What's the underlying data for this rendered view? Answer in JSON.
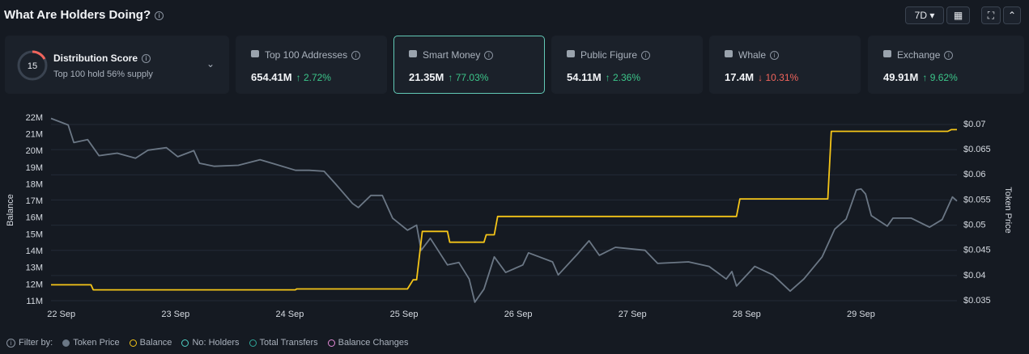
{
  "header": {
    "title": "What Are Holders Doing?",
    "range_button": "7D"
  },
  "score_card": {
    "score": "15",
    "title": "Distribution Score",
    "subtitle": "Top 100 hold 56% supply"
  },
  "cards": [
    {
      "label": "Top 100 Addresses",
      "value": "654.41M",
      "change": "2.72%",
      "direction": "up"
    },
    {
      "label": "Smart Money",
      "value": "21.35M",
      "change": "77.03%",
      "direction": "up",
      "selected": true
    },
    {
      "label": "Public Figure",
      "value": "54.11M",
      "change": "2.36%",
      "direction": "up"
    },
    {
      "label": "Whale",
      "value": "17.4M",
      "change": "10.31%",
      "direction": "down"
    },
    {
      "label": "Exchange",
      "value": "49.91M",
      "change": "9.62%",
      "direction": "up"
    }
  ],
  "chart_data": {
    "type": "line",
    "y_label": "Balance",
    "y2_label": "Token Price",
    "xlim": [
      -0.09,
      7.84
    ],
    "xticks": [
      {
        "value": 0,
        "label": "22 Sep"
      },
      {
        "value": 1,
        "label": "23 Sep"
      },
      {
        "value": 2,
        "label": "24 Sep"
      },
      {
        "value": 3,
        "label": "25 Sep"
      },
      {
        "value": 4,
        "label": "26 Sep"
      },
      {
        "value": 5,
        "label": "27 Sep"
      },
      {
        "value": 6,
        "label": "28 Sep"
      },
      {
        "value": 7,
        "label": "29 Sep"
      }
    ],
    "ylim": [
      11000000,
      22000000
    ],
    "yticks": [
      {
        "value": 11000000,
        "label": "11M"
      },
      {
        "value": 12000000,
        "label": "12M"
      },
      {
        "value": 13000000,
        "label": "13M"
      },
      {
        "value": 14000000,
        "label": "14M"
      },
      {
        "value": 15000000,
        "label": "15M"
      },
      {
        "value": 16000000,
        "label": "16M"
      },
      {
        "value": 17000000,
        "label": "17M"
      },
      {
        "value": 18000000,
        "label": "18M"
      },
      {
        "value": 19000000,
        "label": "19M"
      },
      {
        "value": 20000000,
        "label": "20M"
      },
      {
        "value": 21000000,
        "label": "21M"
      },
      {
        "value": 22000000,
        "label": "22M"
      }
    ],
    "y2lim": [
      0.035,
      0.07
    ],
    "y2ticks": [
      {
        "value": 0.035,
        "label": "$0.035"
      },
      {
        "value": 0.04,
        "label": "$0.04"
      },
      {
        "value": 0.045,
        "label": "$0.045"
      },
      {
        "value": 0.05,
        "label": "$0.05"
      },
      {
        "value": 0.055,
        "label": "$0.055"
      },
      {
        "value": 0.06,
        "label": "$0.06"
      },
      {
        "value": 0.065,
        "label": "$0.065"
      },
      {
        "value": 0.07,
        "label": "$0.07"
      }
    ],
    "grid": true,
    "series": [
      {
        "name": "Token Price",
        "color": "#6b7785",
        "axis": "y2",
        "x": [
          -0.09,
          0.06,
          0.11,
          0.23,
          0.33,
          0.49,
          0.65,
          0.76,
          0.92,
          1.02,
          1.16,
          1.21,
          1.34,
          1.55,
          1.74,
          1.86,
          2.05,
          2.17,
          2.3,
          2.4,
          2.55,
          2.6,
          2.71,
          2.81,
          2.9,
          3.03,
          3.11,
          3.15,
          3.23,
          3.38,
          3.48,
          3.57,
          3.62,
          3.7,
          3.79,
          3.89,
          4.04,
          4.09,
          4.3,
          4.35,
          4.52,
          4.62,
          4.71,
          4.85,
          5.11,
          5.22,
          5.49,
          5.67,
          5.82,
          5.87,
          5.91,
          6.07,
          6.23,
          6.38,
          6.5,
          6.66,
          6.77,
          6.87,
          6.96,
          7.0,
          7.04,
          7.09,
          7.23,
          7.28,
          7.44,
          7.6,
          7.71,
          7.8,
          7.84
        ],
        "values": [
          0.0712,
          0.0699,
          0.0664,
          0.067,
          0.0638,
          0.0643,
          0.0633,
          0.0649,
          0.0654,
          0.0636,
          0.0648,
          0.0623,
          0.0617,
          0.0619,
          0.063,
          0.0622,
          0.0609,
          0.0609,
          0.0607,
          0.0582,
          0.0543,
          0.0535,
          0.0559,
          0.0559,
          0.0514,
          0.049,
          0.05,
          0.045,
          0.0474,
          0.0421,
          0.0426,
          0.0393,
          0.0347,
          0.0373,
          0.0437,
          0.0406,
          0.0421,
          0.0445,
          0.0427,
          0.0401,
          0.0443,
          0.0469,
          0.044,
          0.0456,
          0.045,
          0.0424,
          0.0427,
          0.0418,
          0.0393,
          0.0408,
          0.0379,
          0.0418,
          0.0401,
          0.0369,
          0.0393,
          0.0437,
          0.0492,
          0.0512,
          0.057,
          0.0572,
          0.0562,
          0.0519,
          0.0498,
          0.0514,
          0.0514,
          0.0496,
          0.0511,
          0.0556,
          0.0548
        ]
      },
      {
        "name": "Balance",
        "color": "#f5c518",
        "x": [
          -0.09,
          0.26,
          0.28,
          2.05,
          2.06,
          3.03,
          3.08,
          3.11,
          3.16,
          3.38,
          3.4,
          3.7,
          3.72,
          3.79,
          3.82,
          5.91,
          5.94,
          6.71,
          6.74,
          7.76,
          7.79,
          7.84
        ],
        "values": [
          12000000,
          12000000,
          11700000,
          11700000,
          11750000,
          11750000,
          12300000,
          12300000,
          15200000,
          15200000,
          14550000,
          14550000,
          15000000,
          15000000,
          16100000,
          16100000,
          17150000,
          17150000,
          21200000,
          21200000,
          21300000,
          21300000
        ]
      }
    ]
  },
  "filters": {
    "label": "Filter by:",
    "items": [
      {
        "label": "Token Price",
        "color": "#6b7785",
        "filled": true
      },
      {
        "label": "Balance",
        "color": "#f5c518",
        "filled": false
      },
      {
        "label": "No: Holders",
        "color": "#4fd1c5",
        "filled": false
      },
      {
        "label": "Total Transfers",
        "color": "#2fa79a",
        "filled": false
      },
      {
        "label": "Balance Changes",
        "color": "#e58ad8",
        "filled": false
      }
    ]
  }
}
